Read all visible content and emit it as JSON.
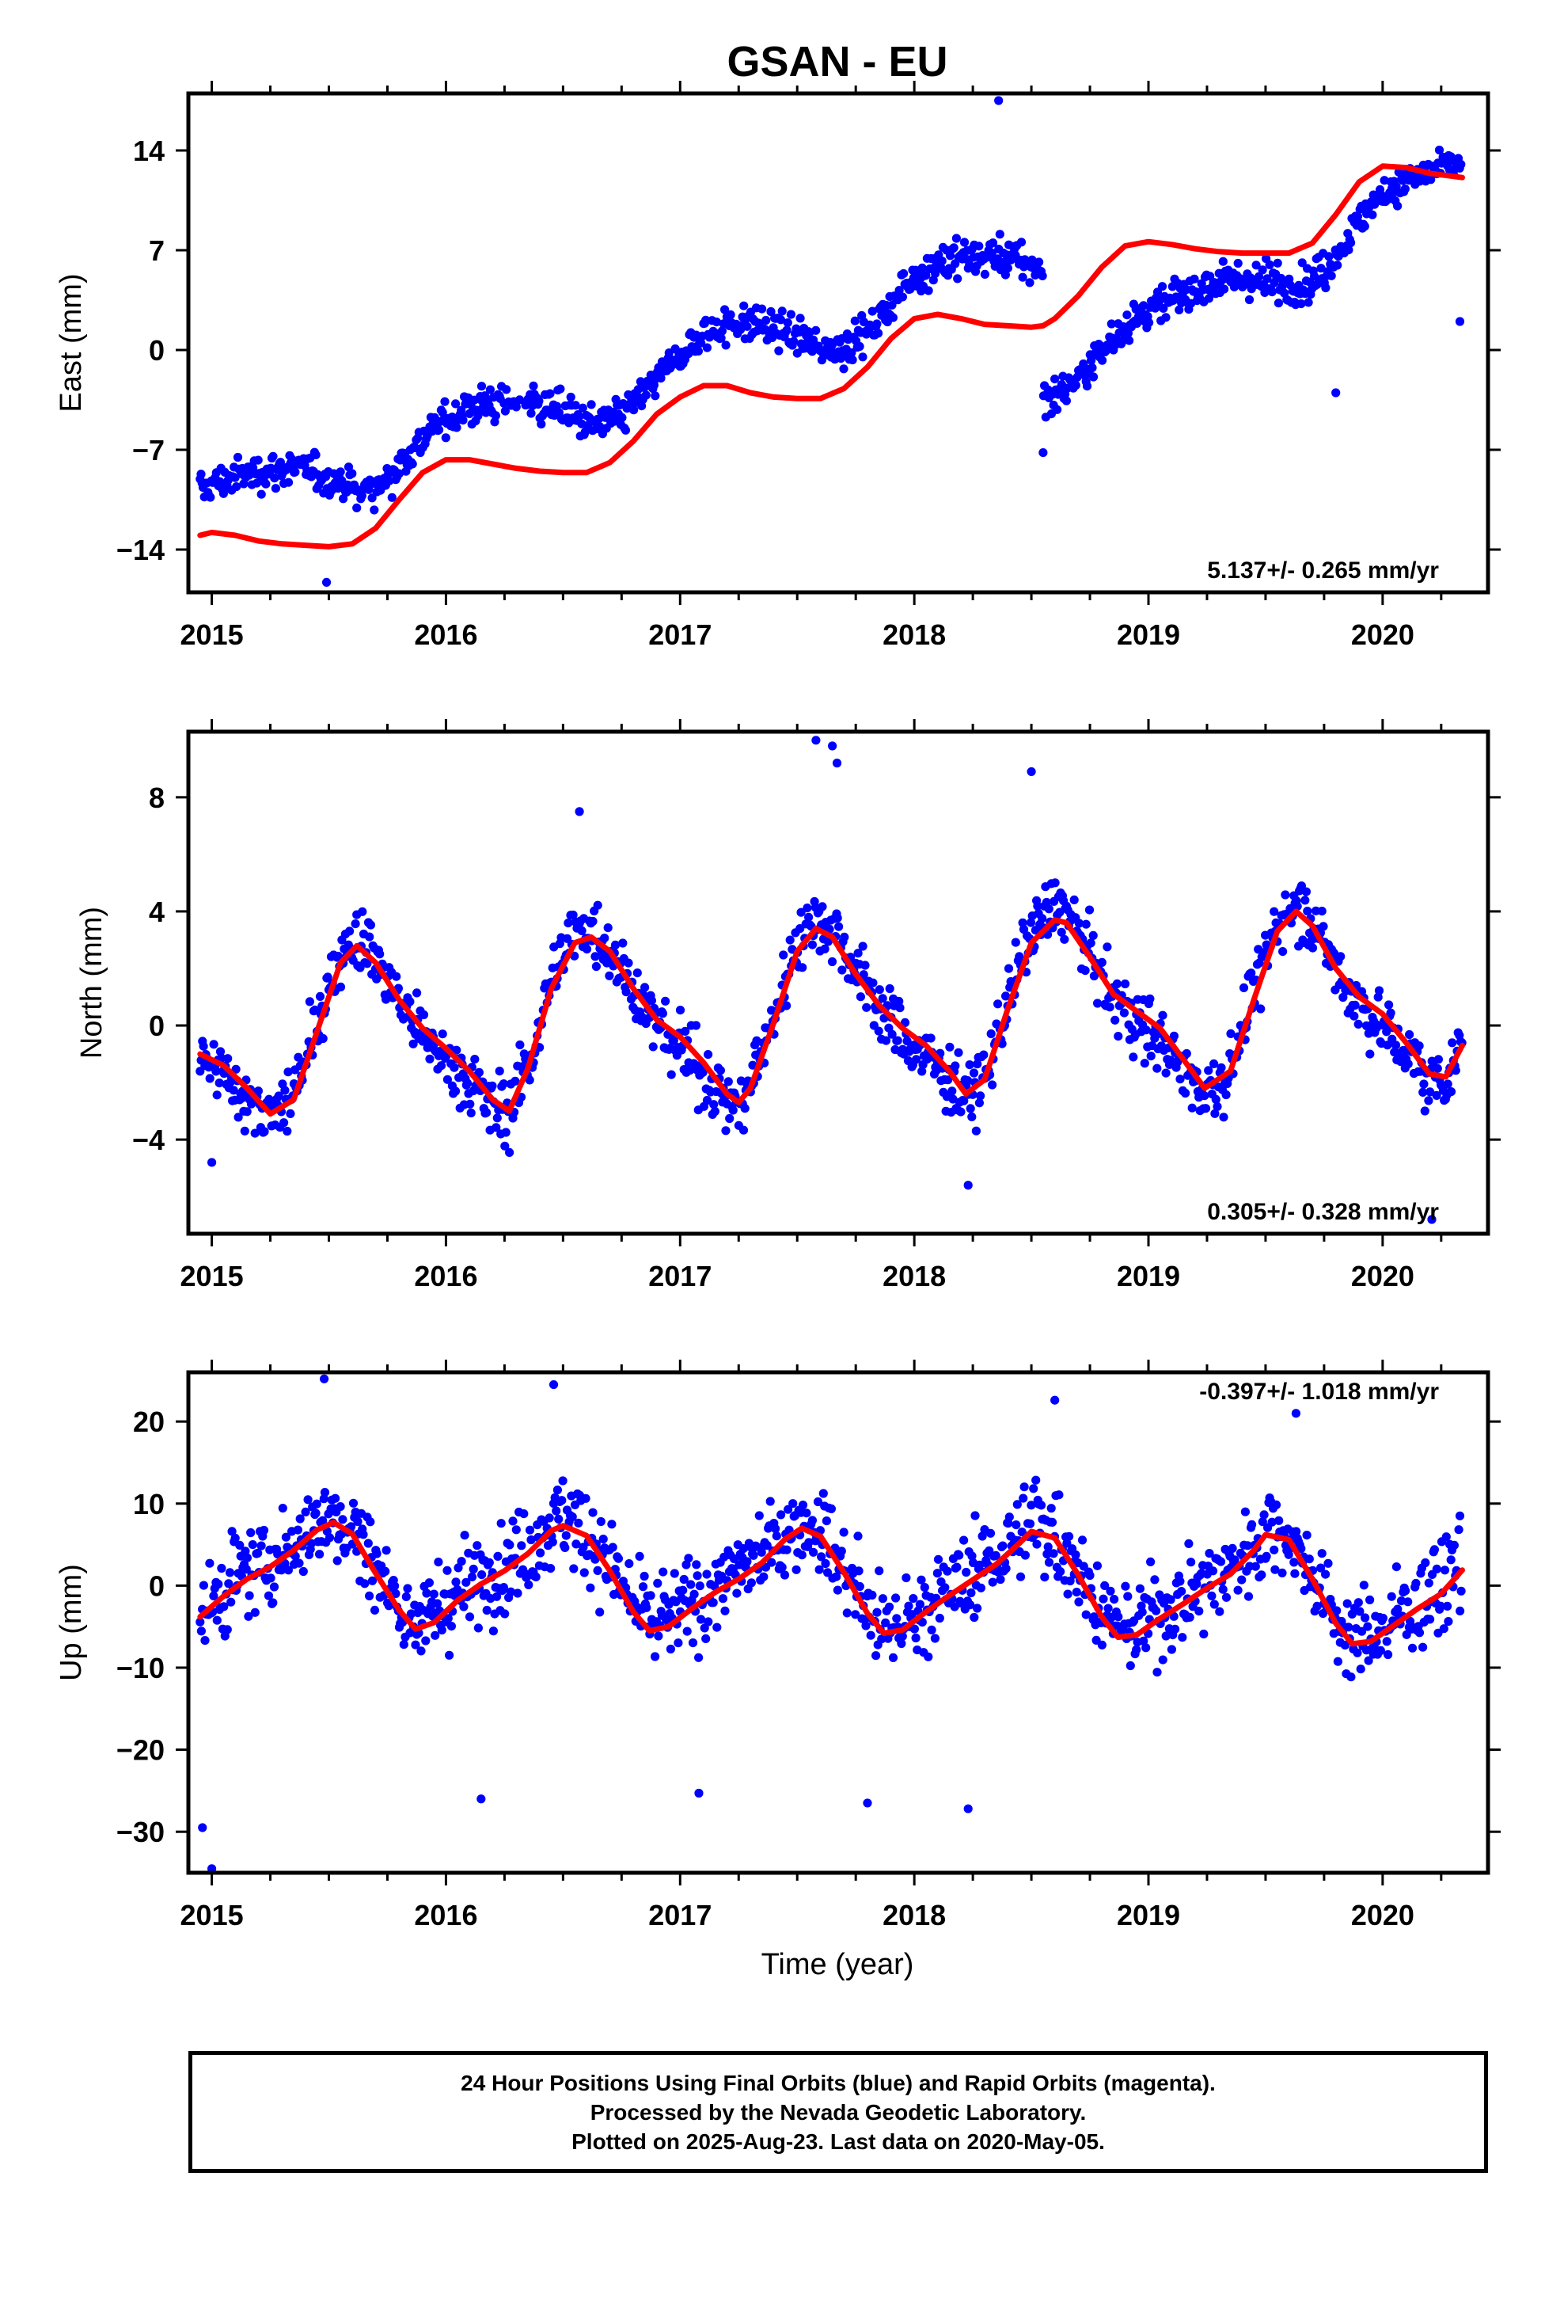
{
  "chart_data": {
    "title": "GSAN - EU",
    "type": "scatter",
    "x_axis": {
      "label": "Time (year)",
      "range": [
        2014.9,
        2020.45
      ],
      "ticks": [
        2015,
        2016,
        2017,
        2018,
        2019,
        2020
      ]
    },
    "colors": {
      "points": "#0000ff",
      "model": "#ff0000",
      "axes": "#000000"
    },
    "panels": [
      {
        "name": "east",
        "ylabel": "East (mm)",
        "ylim": [
          -17,
          18
        ],
        "yticks": [
          14,
          7,
          0,
          -7,
          -14
        ],
        "ytick_labels": [
          "14",
          "7",
          "0",
          "−7",
          "−14"
        ],
        "rate": "5.137+/- 0.265 mm/yr",
        "rate_position": "bottom-right",
        "observations": {
          "series": "24 hour positions (final orbits)",
          "color": "#0000ff",
          "x_start": 2014.95,
          "x_end": 2020.34,
          "step_at": 2018.55,
          "step_size": -8.5,
          "points": [
            {
              "x": 2018.36,
              "y": 17.5
            },
            {
              "x": 2015.49,
              "y": -16.3
            },
            {
              "x": 2018.55,
              "y": -7.2
            },
            {
              "x": 2019.8,
              "y": -3.0
            },
            {
              "x": 2020.33,
              "y": 2.0
            },
            {
              "x": 2016.15,
              "y": -3.5
            }
          ]
        },
        "model": {
          "series": "model fit",
          "x": [
            2014.95,
            2015.0,
            2015.1,
            2015.2,
            2015.3,
            2015.4,
            2015.5,
            2015.6,
            2015.7,
            2015.8,
            2015.9,
            2016.0,
            2016.1,
            2016.2,
            2016.3,
            2016.4,
            2016.5,
            2016.6,
            2016.7,
            2016.8,
            2016.9,
            2017.0,
            2017.1,
            2017.2,
            2017.3,
            2017.4,
            2017.5,
            2017.6,
            2017.7,
            2017.8,
            2017.9,
            2018.0,
            2018.1,
            2018.2,
            2018.3,
            2018.4,
            2018.5,
            2018.55,
            2018.6,
            2018.7,
            2018.8,
            2018.9,
            2019.0,
            2019.1,
            2019.2,
            2019.3,
            2019.4,
            2019.5,
            2019.6,
            2019.7,
            2019.8,
            2019.9,
            2020.0,
            2020.1,
            2020.2,
            2020.34
          ],
          "y": [
            -13.0,
            -12.8,
            -13.0,
            -13.4,
            -13.6,
            -13.7,
            -13.8,
            -13.6,
            -12.5,
            -10.5,
            -8.6,
            -7.7,
            -7.7,
            -8.0,
            -8.3,
            -8.5,
            -8.6,
            -8.6,
            -7.9,
            -6.4,
            -4.5,
            -3.3,
            -2.5,
            -2.5,
            -3.0,
            -3.3,
            -3.4,
            -3.4,
            -2.7,
            -1.2,
            0.8,
            2.2,
            2.5,
            2.2,
            1.8,
            1.7,
            1.6,
            1.7,
            2.2,
            3.8,
            5.8,
            7.3,
            7.6,
            7.4,
            7.1,
            6.9,
            6.8,
            6.8,
            6.8,
            7.5,
            9.5,
            11.8,
            12.9,
            12.8,
            12.4,
            12.1
          ]
        }
      },
      {
        "name": "north",
        "ylabel": "North (mm)",
        "ylim": [
          -7.3,
          10.3
        ],
        "yticks": [
          8,
          4,
          0,
          -4
        ],
        "ytick_labels": [
          "8",
          "4",
          "0",
          "−4"
        ],
        "rate": "0.305+/- 0.328 mm/yr",
        "rate_position": "bottom-right",
        "observations": {
          "series": "24 hour positions (final orbits)",
          "color": "#0000ff",
          "x_start": 2014.95,
          "x_end": 2020.34,
          "points": [
            {
              "x": 2017.58,
              "y": 10.0
            },
            {
              "x": 2017.65,
              "y": 9.8
            },
            {
              "x": 2017.67,
              "y": 9.2
            },
            {
              "x": 2018.5,
              "y": 8.9
            },
            {
              "x": 2016.57,
              "y": 7.5
            },
            {
              "x": 2015.0,
              "y": -4.8
            },
            {
              "x": 2018.23,
              "y": -5.6
            },
            {
              "x": 2020.21,
              "y": -6.8
            }
          ]
        },
        "model": {
          "series": "model fit",
          "x": [
            2014.95,
            2015.05,
            2015.15,
            2015.25,
            2015.35,
            2015.45,
            2015.55,
            2015.62,
            2015.7,
            2015.8,
            2015.9,
            2016.0,
            2016.1,
            2016.2,
            2016.27,
            2016.35,
            2016.45,
            2016.55,
            2016.62,
            2016.7,
            2016.8,
            2016.9,
            2017.0,
            2017.1,
            2017.2,
            2017.25,
            2017.3,
            2017.4,
            2017.5,
            2017.58,
            2017.65,
            2017.75,
            2017.85,
            2017.95,
            2018.05,
            2018.15,
            2018.22,
            2018.3,
            2018.4,
            2018.5,
            2018.6,
            2018.65,
            2018.75,
            2018.85,
            2018.95,
            2019.05,
            2019.15,
            2019.24,
            2019.35,
            2019.45,
            2019.55,
            2019.63,
            2019.7,
            2019.8,
            2019.9,
            2020.0,
            2020.1,
            2020.2,
            2020.27,
            2020.34
          ],
          "y": [
            -1.0,
            -1.4,
            -2.2,
            -3.1,
            -2.6,
            -0.2,
            2.2,
            2.8,
            2.2,
            0.9,
            -0.1,
            -0.8,
            -1.6,
            -2.6,
            -3.0,
            -1.5,
            1.3,
            2.9,
            3.1,
            2.6,
            1.3,
            0.2,
            -0.4,
            -1.3,
            -2.4,
            -2.7,
            -2.2,
            0.1,
            2.6,
            3.4,
            3.1,
            1.8,
            0.7,
            -0.1,
            -0.7,
            -1.6,
            -2.4,
            -1.9,
            0.6,
            2.9,
            3.7,
            3.6,
            2.4,
            1.1,
            0.5,
            -0.1,
            -1.2,
            -2.2,
            -1.6,
            0.9,
            3.3,
            4.0,
            3.5,
            2.0,
            1.0,
            0.4,
            -0.6,
            -1.7,
            -1.8,
            -0.7
          ]
        }
      },
      {
        "name": "up",
        "ylabel": "Up (mm)",
        "ylim": [
          -35,
          26
        ],
        "yticks": [
          20,
          10,
          0,
          -10,
          -20,
          -30
        ],
        "ytick_labels": [
          "20",
          "10",
          "0",
          "−10",
          "−20",
          "−30"
        ],
        "rate": "-0.397+/- 1.018 mm/yr",
        "rate_position": "top-right",
        "observations": {
          "series": "24 hour positions (final orbits)",
          "color": "#0000ff",
          "x_start": 2014.95,
          "x_end": 2020.34,
          "points": [
            {
              "x": 2015.0,
              "y": -34.5
            },
            {
              "x": 2014.96,
              "y": -29.5
            },
            {
              "x": 2015.48,
              "y": 25.2
            },
            {
              "x": 2016.46,
              "y": 24.5
            },
            {
              "x": 2016.15,
              "y": -26.0
            },
            {
              "x": 2017.08,
              "y": -25.3
            },
            {
              "x": 2017.8,
              "y": -26.5
            },
            {
              "x": 2018.23,
              "y": -27.2
            },
            {
              "x": 2018.6,
              "y": 22.6
            },
            {
              "x": 2019.63,
              "y": 21.0
            },
            {
              "x": 2020.33,
              "y": 8.5
            }
          ]
        },
        "model": {
          "series": "model fit",
          "x": [
            2014.95,
            2015.05,
            2015.15,
            2015.25,
            2015.35,
            2015.45,
            2015.52,
            2015.6,
            2015.7,
            2015.8,
            2015.87,
            2015.95,
            2016.05,
            2016.15,
            2016.25,
            2016.35,
            2016.45,
            2016.5,
            2016.6,
            2016.7,
            2016.8,
            2016.87,
            2016.95,
            2017.05,
            2017.15,
            2017.25,
            2017.35,
            2017.45,
            2017.52,
            2017.6,
            2017.7,
            2017.8,
            2017.87,
            2017.95,
            2018.05,
            2018.15,
            2018.25,
            2018.35,
            2018.45,
            2018.5,
            2018.6,
            2018.7,
            2018.8,
            2018.87,
            2018.95,
            2019.05,
            2019.15,
            2019.25,
            2019.35,
            2019.45,
            2019.5,
            2019.6,
            2019.7,
            2019.8,
            2019.87,
            2019.95,
            2020.05,
            2020.15,
            2020.25,
            2020.34
          ],
          "y": [
            -3.8,
            -1.3,
            0.8,
            2.3,
            4.3,
            6.8,
            7.7,
            6.3,
            1.5,
            -3.0,
            -5.3,
            -4.5,
            -1.8,
            0.2,
            1.8,
            3.9,
            6.7,
            7.3,
            6.1,
            1.8,
            -3.2,
            -5.5,
            -5.0,
            -2.8,
            -0.8,
            0.8,
            2.8,
            5.7,
            7.0,
            6.0,
            1.6,
            -3.4,
            -5.8,
            -5.4,
            -3.2,
            -1.2,
            0.7,
            2.6,
            5.2,
            6.6,
            5.8,
            1.3,
            -3.8,
            -6.3,
            -6.0,
            -4.0,
            -2.2,
            -0.3,
            1.4,
            4.3,
            6.2,
            5.6,
            0.8,
            -4.6,
            -7.1,
            -6.8,
            -4.8,
            -2.8,
            -1.0,
            1.9
          ]
        }
      }
    ]
  },
  "footer": {
    "line1": "24 Hour Positions Using Final Orbits (blue) and Rapid Orbits (magenta).",
    "line2": "Processed by the Nevada Geodetic Laboratory.",
    "line3": "Plotted on 2025-Aug-23. Last data on 2020-May-05."
  }
}
